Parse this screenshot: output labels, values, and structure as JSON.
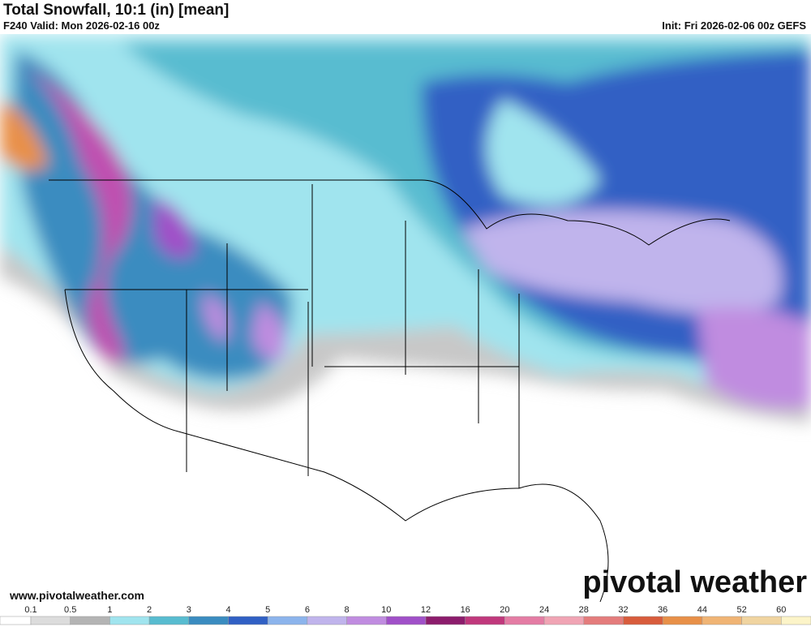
{
  "header": {
    "title": "Total Snowfall, 10:1 (in) [mean]",
    "valid": "F240 Valid: Mon 2026-02-16 00z",
    "init": "Init: Fri 2026-02-06 00z GEFS"
  },
  "footer": {
    "website": "www.pivotalweather.com",
    "logo": "pivotal weather"
  },
  "colorbar": {
    "labels": [
      "0.1",
      "0.5",
      "1",
      "2",
      "3",
      "4",
      "5",
      "6",
      "8",
      "10",
      "12",
      "16",
      "20",
      "24",
      "28",
      "32",
      "36",
      "44",
      "52",
      "60"
    ],
    "colors": [
      "#ffffff",
      "#dcdcdc",
      "#b4b4b4",
      "#a0e4ee",
      "#58bcd0",
      "#3a8cc0",
      "#3060c4",
      "#8cb4ec",
      "#c0b4ec",
      "#c08ce0",
      "#a050c8",
      "#8c1c6c",
      "#c0387c",
      "#e47ca4",
      "#f0a4b4",
      "#e47c7c",
      "#d85c3c",
      "#e89048",
      "#f0b474",
      "#f0d4a0",
      "#fcf4c8"
    ]
  }
}
